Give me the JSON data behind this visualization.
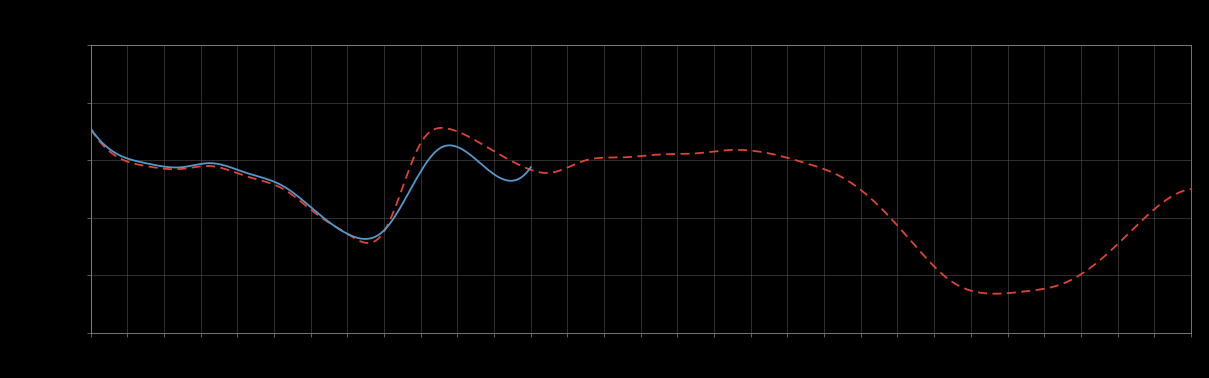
{
  "background_color": "#000000",
  "plot_bg_color": "#000000",
  "grid_color": "#606060",
  "line1_color": "#5599cc",
  "line2_color": "#dd4433",
  "line_width": 1.3,
  "xlim": [
    0,
    120
  ],
  "ylim": [
    0,
    5
  ],
  "grid_alpha": 0.7,
  "figsize": [
    12.09,
    3.78
  ],
  "dpi": 100,
  "spine_color": "#888888",
  "tick_color": "#888888",
  "blue_key_x": [
    0,
    3,
    6,
    10,
    13,
    17,
    21,
    25,
    28,
    32,
    38,
    43,
    48
  ],
  "blue_key_y": [
    3.55,
    3.1,
    2.95,
    2.88,
    2.95,
    2.78,
    2.55,
    2.05,
    1.72,
    1.78,
    3.2,
    2.88,
    2.88
  ],
  "red_key_x": [
    0,
    3,
    6,
    10,
    13,
    17,
    21,
    25,
    28,
    32,
    36,
    39,
    43,
    47,
    50,
    54,
    58,
    62,
    66,
    70,
    74,
    78,
    82,
    86,
    90,
    94,
    98,
    102,
    106,
    110,
    114,
    118,
    120
  ],
  "red_key_y": [
    3.55,
    3.05,
    2.9,
    2.85,
    2.9,
    2.72,
    2.5,
    2.02,
    1.72,
    1.76,
    3.3,
    3.55,
    3.25,
    2.9,
    2.78,
    3.0,
    3.05,
    3.1,
    3.12,
    3.18,
    3.12,
    2.95,
    2.7,
    2.2,
    1.5,
    0.88,
    0.68,
    0.72,
    0.85,
    1.25,
    1.85,
    2.38,
    2.5
  ],
  "x_tick_spacing": 4,
  "y_tick_spacing": 1
}
